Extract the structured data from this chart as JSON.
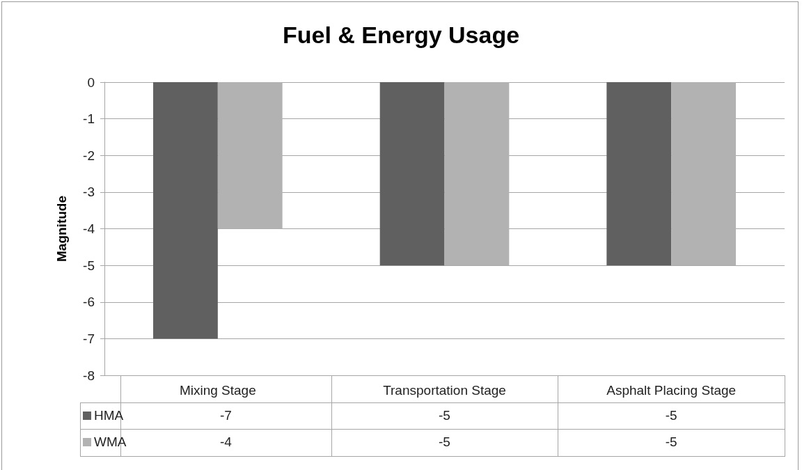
{
  "chart_data": {
    "type": "bar",
    "title": "Fuel & Energy Usage",
    "ylabel": "Magnitude",
    "categories": [
      "Mixing Stage",
      "Transportation Stage",
      "Asphalt Placing Stage"
    ],
    "series": [
      {
        "name": "HMA",
        "color": "#606060",
        "values": [
          -7,
          -5,
          -5
        ]
      },
      {
        "name": "WMA",
        "color": "#b2b2b2",
        "values": [
          -4,
          -5,
          -5
        ]
      }
    ],
    "ylim": [
      -8,
      0
    ],
    "yticks": [
      0,
      -1,
      -2,
      -3,
      -4,
      -5,
      -6,
      -7,
      -8
    ],
    "grid": "y",
    "legend": "bottom",
    "data_labels": true
  }
}
